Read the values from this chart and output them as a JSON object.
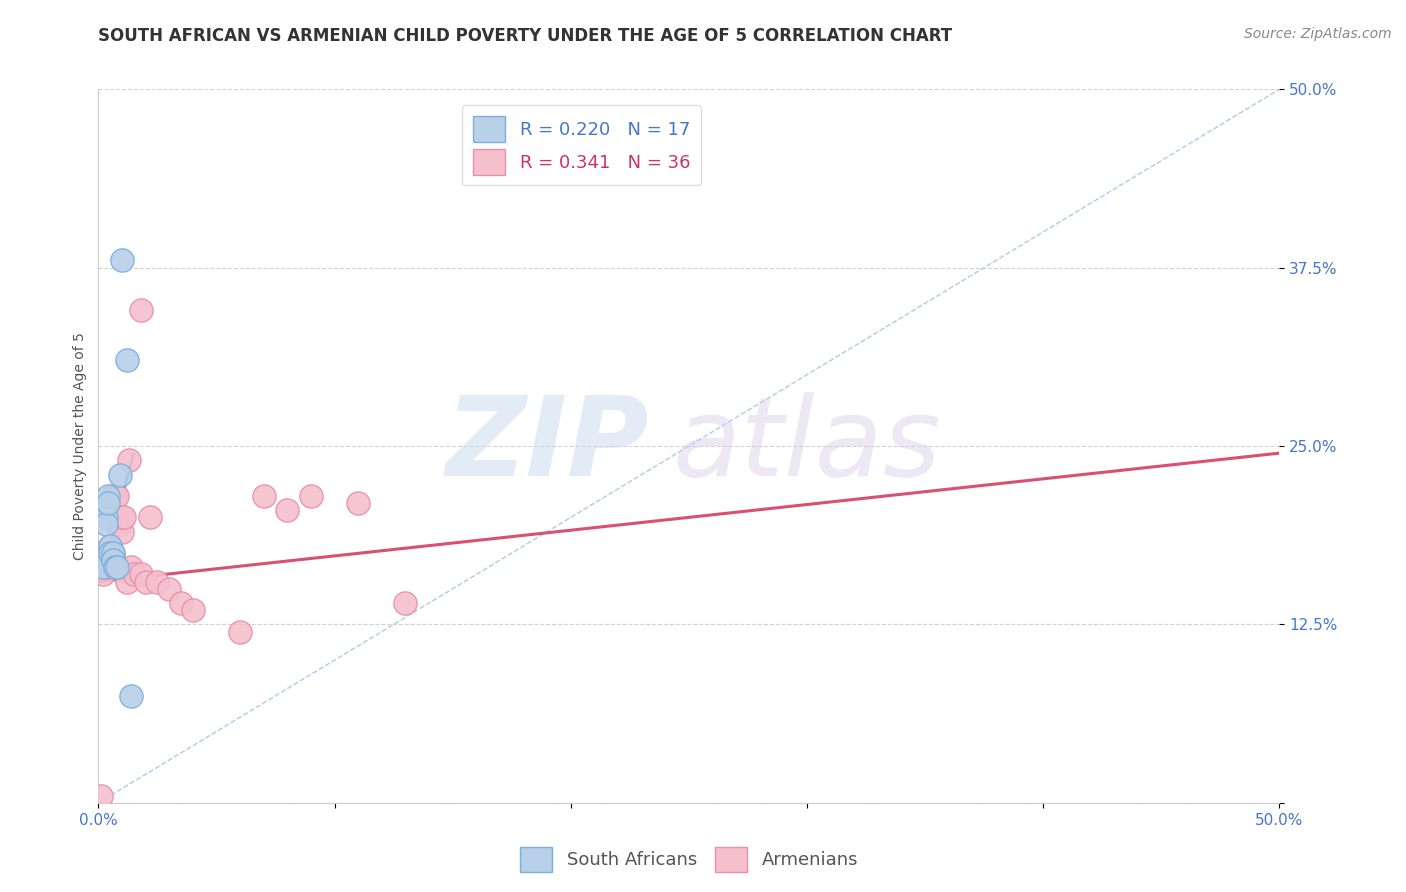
{
  "title": "SOUTH AFRICAN VS ARMENIAN CHILD POVERTY UNDER THE AGE OF 5 CORRELATION CHART",
  "source": "Source: ZipAtlas.com",
  "ylabel": "Child Poverty Under the Age of 5",
  "xlim": [
    0.0,
    0.5
  ],
  "ylim": [
    0.0,
    0.5
  ],
  "xticks": [
    0.0,
    0.1,
    0.2,
    0.3,
    0.4,
    0.5
  ],
  "yticks": [
    0.0,
    0.125,
    0.25,
    0.375,
    0.5
  ],
  "xtick_labels": [
    "0.0%",
    "",
    "",
    "",
    "",
    "50.0%"
  ],
  "ytick_labels": [
    "",
    "12.5%",
    "25.0%",
    "37.5%",
    "50.0%"
  ],
  "background_color": "#ffffff",
  "grid_color": "#cccccc",
  "sa_x": [
    0.001,
    0.001,
    0.002,
    0.003,
    0.003,
    0.004,
    0.004,
    0.005,
    0.005,
    0.006,
    0.006,
    0.007,
    0.008,
    0.009,
    0.01,
    0.012,
    0.014
  ],
  "sa_y": [
    0.175,
    0.17,
    0.165,
    0.2,
    0.195,
    0.215,
    0.21,
    0.18,
    0.175,
    0.175,
    0.17,
    0.165,
    0.165,
    0.23,
    0.38,
    0.31,
    0.075
  ],
  "sa_color": "#b8d0e8",
  "sa_edge_color": "#7aafdc",
  "sa_R": 0.22,
  "sa_N": 17,
  "sa_line_x": [
    0.0,
    0.015
  ],
  "sa_line_y": [
    0.155,
    0.245
  ],
  "arm_x": [
    0.001,
    0.001,
    0.002,
    0.003,
    0.003,
    0.004,
    0.005,
    0.005,
    0.006,
    0.006,
    0.007,
    0.008,
    0.008,
    0.009,
    0.01,
    0.01,
    0.011,
    0.012,
    0.013,
    0.014,
    0.015,
    0.018,
    0.02,
    0.022,
    0.025,
    0.03,
    0.035,
    0.04,
    0.06,
    0.07,
    0.08,
    0.09,
    0.11,
    0.13,
    0.001,
    0.018
  ],
  "arm_y": [
    0.17,
    0.165,
    0.16,
    0.175,
    0.17,
    0.165,
    0.18,
    0.175,
    0.215,
    0.175,
    0.215,
    0.195,
    0.215,
    0.195,
    0.19,
    0.2,
    0.2,
    0.155,
    0.24,
    0.165,
    0.16,
    0.16,
    0.155,
    0.2,
    0.155,
    0.15,
    0.14,
    0.135,
    0.12,
    0.215,
    0.205,
    0.215,
    0.21,
    0.14,
    0.005,
    0.345
  ],
  "arm_color": "#f5bfce",
  "arm_edge_color": "#e890aa",
  "arm_R": 0.341,
  "arm_N": 36,
  "arm_line_x": [
    0.0,
    0.5
  ],
  "arm_line_y": [
    0.155,
    0.245
  ],
  "diag_line_x": [
    0.0,
    0.5
  ],
  "diag_line_y": [
    0.0,
    0.5
  ],
  "title_fontsize": 12,
  "axis_label_fontsize": 10,
  "tick_fontsize": 11,
  "legend_fontsize": 13,
  "source_fontsize": 10
}
